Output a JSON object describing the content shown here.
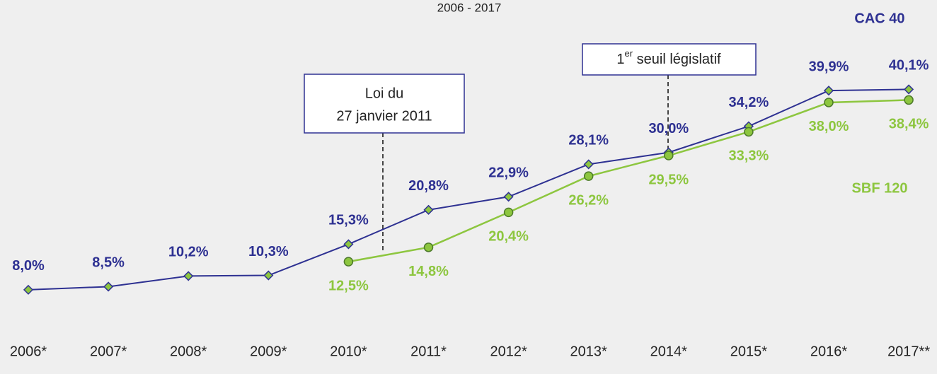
{
  "chart_data": {
    "type": "line",
    "subtitle": "2006 - 2017",
    "categories": [
      "2006*",
      "2007*",
      "2008*",
      "2009*",
      "2010*",
      "2011*",
      "2012*",
      "2013*",
      "2014*",
      "2015*",
      "2016*",
      "2017**"
    ],
    "series": [
      {
        "name": "CAC 40",
        "color": "#2e3192",
        "values": [
          8.0,
          8.5,
          10.2,
          10.3,
          15.3,
          20.8,
          22.9,
          28.1,
          30.0,
          34.2,
          39.9,
          40.1
        ],
        "value_labels": [
          "8,0%",
          "8,5%",
          "10,2%",
          "10,3%",
          "15,3%",
          "20,8%",
          "22,9%",
          "28,1%",
          "30,0%",
          "34,2%",
          "39,9%",
          "40,1%"
        ]
      },
      {
        "name": "SBF 120",
        "color": "#8dc63f",
        "values": [
          null,
          null,
          null,
          null,
          12.5,
          14.8,
          20.4,
          26.2,
          29.5,
          33.3,
          38.0,
          38.4
        ],
        "value_labels": [
          null,
          null,
          null,
          null,
          "12,5%",
          "14,8%",
          "20,4%",
          "26,2%",
          "29,5%",
          "33,3%",
          "38,0%",
          "38,4%"
        ]
      }
    ],
    "ylim": [
      0,
      50
    ],
    "annotations": [
      {
        "lines": [
          "Loi du",
          "27 janvier 2011"
        ]
      },
      {
        "parts": [
          "1",
          "er",
          " seuil législatif"
        ]
      }
    ]
  }
}
